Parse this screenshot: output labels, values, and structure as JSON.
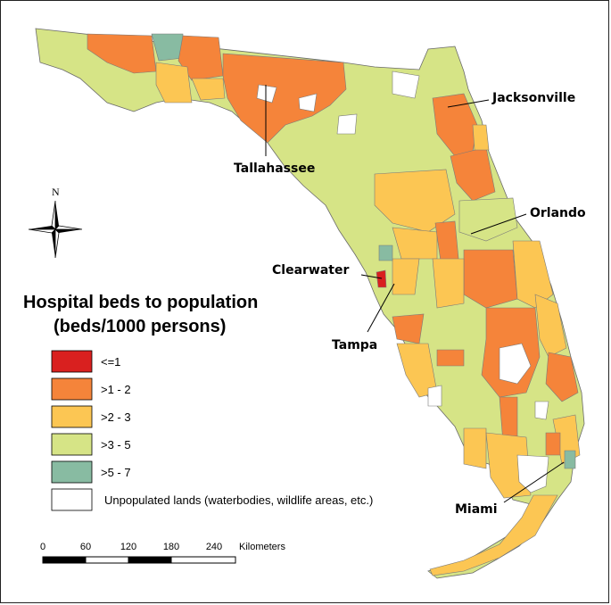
{
  "colors": {
    "c_le1": "#d9201f",
    "c_1_2": "#f5843a",
    "c_2_3": "#fcc653",
    "c_3_5": "#d6e486",
    "c_5_7": "#88bba2",
    "unpopulated": "#ffffff"
  },
  "cities": {
    "tallahassee": "Tallahassee",
    "jacksonville": "Jacksonville",
    "orlando": "Orlando",
    "clearwater": "Clearwater",
    "tampa": "Tampa",
    "miami": "Miami"
  },
  "legend": {
    "title_line1": "Hospital beds to population",
    "title_line2": "(beds/1000 persons)",
    "items": [
      {
        "label": "<=1",
        "color": "#d9201f"
      },
      {
        "label": ">1 - 2",
        "color": "#f5843a"
      },
      {
        "label": ">2 - 3",
        "color": "#fcc653"
      },
      {
        "label": ">3 - 5",
        "color": "#d6e486"
      },
      {
        "label": ">5 - 7",
        "color": "#88bba2"
      },
      {
        "label": "Unpopulated lands (waterbodies, wildlife areas, etc.)",
        "color": "#ffffff"
      }
    ]
  },
  "north_arrow": {
    "label": "N",
    "icon": "compass-rose-icon"
  },
  "scale_bar": {
    "ticks": [
      "0",
      "60",
      "120",
      "180",
      "240"
    ],
    "unit": "Kilometers"
  }
}
